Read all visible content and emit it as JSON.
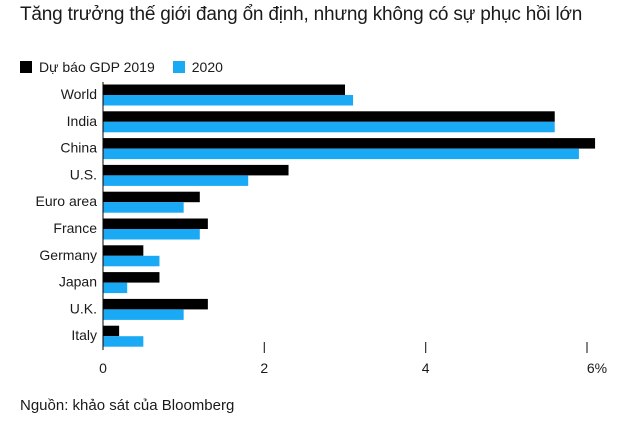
{
  "title": "Tăng trưởng thế giới đang ổn định, nhưng không có sự phục hồi lớn",
  "source": "Nguồn: khảo sát của Bloomberg",
  "colors": {
    "series_2019": "#000000",
    "series_2020": "#1aaaf5",
    "axis": "#333333"
  },
  "chart_data": {
    "type": "bar",
    "orientation": "horizontal",
    "categories": [
      "World",
      "India",
      "China",
      "U.S.",
      "Euro area",
      "France",
      "Germany",
      "Japan",
      "U.K.",
      "Italy"
    ],
    "series": [
      {
        "name": "Dự báo GDP 2019",
        "color": "#000000",
        "values": [
          3.0,
          5.6,
          6.1,
          2.3,
          1.2,
          1.3,
          0.5,
          0.7,
          1.3,
          0.2
        ]
      },
      {
        "name": "2020",
        "color": "#1aaaf5",
        "values": [
          3.1,
          5.6,
          5.9,
          1.8,
          1.0,
          1.2,
          0.7,
          0.3,
          1.0,
          0.5
        ]
      }
    ],
    "xlim": [
      0,
      6
    ],
    "x_ticks": [
      0,
      2,
      4,
      6
    ],
    "x_tick_labels": [
      "0",
      "2",
      "4",
      "6%"
    ],
    "legend_position": "top-left",
    "grid": false
  }
}
